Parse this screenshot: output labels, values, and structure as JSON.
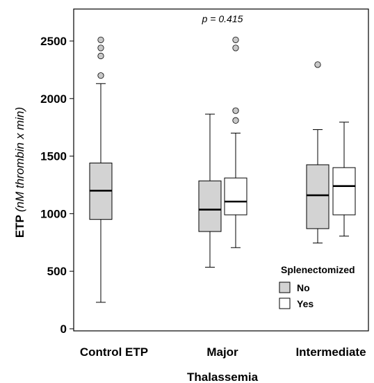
{
  "chart_data": {
    "type": "boxplot",
    "annotation": "p = 0.415",
    "ylabel": {
      "bold": "ETP",
      "italic": "(nM thrombin x min)"
    },
    "xlabel": "Thalassemia",
    "ylim": [
      0,
      2700
    ],
    "yticks": [
      0,
      500,
      1000,
      1500,
      2000,
      2500
    ],
    "categories": [
      "Control ETP",
      "Major",
      "Intermediate"
    ],
    "legend": {
      "title": "Splenectomized",
      "position": "bottom-right",
      "entries": [
        {
          "label": "No",
          "color": "#d3d3d3"
        },
        {
          "label": "Yes",
          "color": "#ffffff"
        }
      ]
    },
    "boxes": [
      {
        "category": "Control ETP",
        "group": "No",
        "min": 230,
        "q1": 950,
        "median": 1200,
        "q3": 1440,
        "max": 2130,
        "outliers": [
          2200,
          2370,
          2440,
          2510
        ]
      },
      {
        "category": "Major",
        "group": "No",
        "min": 535,
        "q1": 845,
        "median": 1035,
        "q3": 1285,
        "max": 1865,
        "outliers": []
      },
      {
        "category": "Major",
        "group": "Yes",
        "min": 705,
        "q1": 990,
        "median": 1105,
        "q3": 1310,
        "max": 1700,
        "outliers": [
          1810,
          1895,
          2440,
          2510
        ]
      },
      {
        "category": "Intermediate",
        "group": "No",
        "min": 745,
        "q1": 870,
        "median": 1160,
        "q3": 1425,
        "max": 1730,
        "outliers": [
          2295
        ]
      },
      {
        "category": "Intermediate",
        "group": "Yes",
        "min": 805,
        "q1": 990,
        "median": 1240,
        "q3": 1400,
        "max": 1795,
        "outliers": []
      }
    ]
  }
}
